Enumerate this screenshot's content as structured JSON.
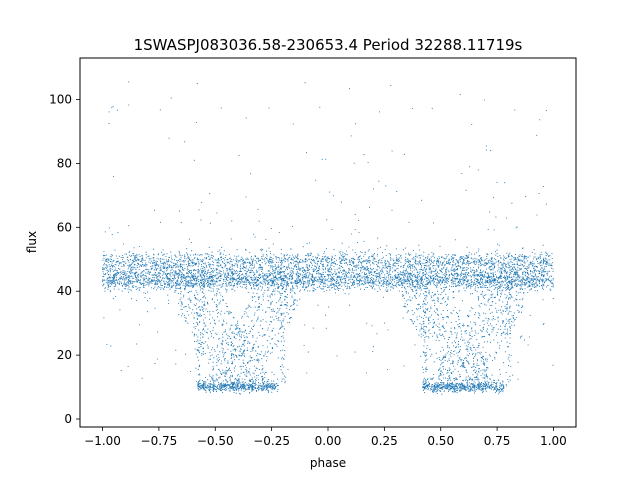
{
  "chart_data": {
    "type": "scatter",
    "title": "1SWASPJ083036.58-230653.4 Period 32288.11719s",
    "xlabel": "phase",
    "ylabel": "flux",
    "xlim": [
      -1.1,
      1.1
    ],
    "ylim": [
      -2.5,
      113
    ],
    "x_ticks": [
      -1.0,
      -0.75,
      -0.5,
      -0.25,
      0.0,
      0.25,
      0.5,
      0.75,
      1.0
    ],
    "x_tick_labels": [
      "−1.00",
      "−0.75",
      "−0.50",
      "−0.25",
      "0.00",
      "0.25",
      "0.50",
      "0.75",
      "1.00"
    ],
    "y_ticks": [
      0,
      20,
      40,
      60,
      80,
      100
    ],
    "y_tick_labels": [
      "0",
      "20",
      "40",
      "60",
      "80",
      "100"
    ],
    "grid": false,
    "legend": "none",
    "color": "#1f77b4",
    "series": [
      {
        "description_of_shape": "phase-folded light curve, plotted twice over phase -1 to 1",
        "phase_range": [
          -1.0,
          1.0
        ],
        "baseline_flux": 45,
        "baseline_spread": 4,
        "upper_branch_flux": 49.5,
        "lower_branch_flux": 41.5,
        "dip_floor_flux": 10,
        "dip_intervals": [
          [
            -0.62,
            -0.18
          ],
          [
            0.38,
            0.82
          ]
        ],
        "outlier_flux_max": 107
      }
    ]
  }
}
